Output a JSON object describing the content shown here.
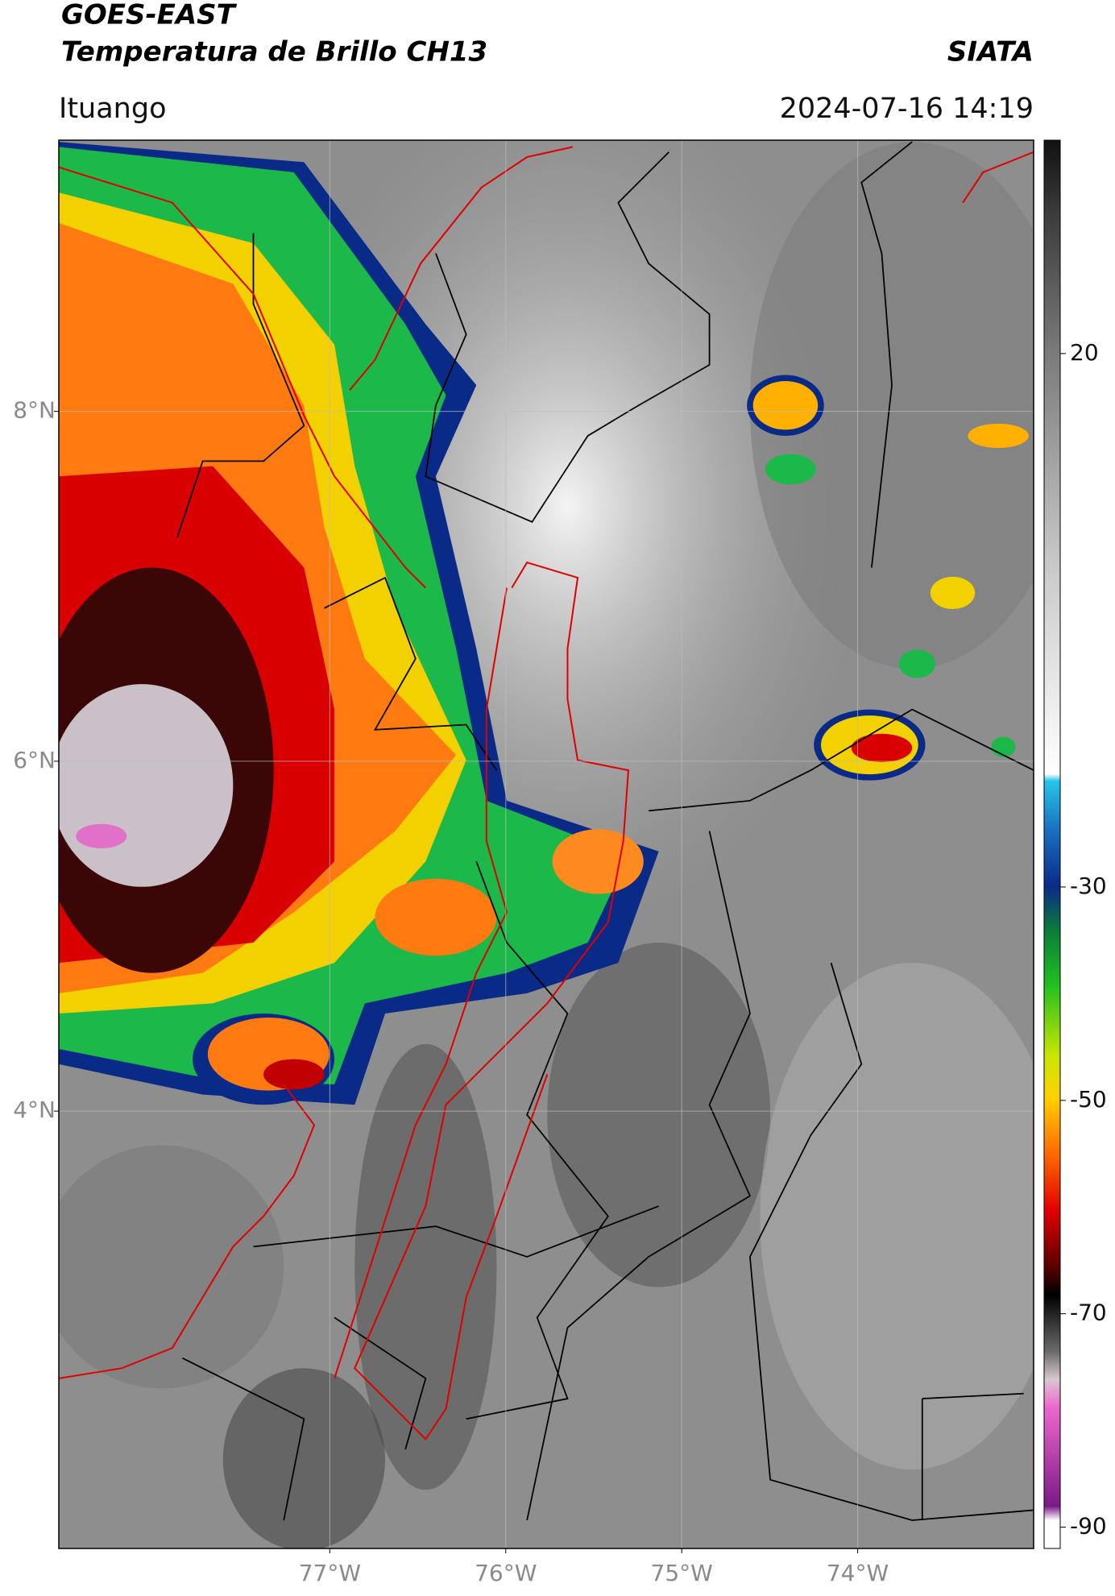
{
  "header": {
    "title": "GOES-EAST",
    "subtitle": "Temperatura de Brillo CH13",
    "brand": "SIATA",
    "location": "Ituango",
    "datetime": "2024-07-16 14:19"
  },
  "map": {
    "xlim": [
      -78.54,
      -73.0
    ],
    "ylim": [
      1.5,
      9.55
    ],
    "xticks": [
      {
        "value": -77,
        "label": "77°W"
      },
      {
        "value": -76,
        "label": "76°W"
      },
      {
        "value": -75,
        "label": "75°W"
      },
      {
        "value": -74,
        "label": "74°W"
      }
    ],
    "yticks": [
      {
        "value": 8,
        "label": "8°N"
      },
      {
        "value": 6,
        "label": "6°N"
      },
      {
        "value": 4,
        "label": "4°N"
      }
    ],
    "grid": true
  },
  "colorbar": {
    "lim": [
      -92,
      40
    ],
    "ticks": [
      20,
      -30,
      -50,
      -70,
      -90
    ]
  }
}
